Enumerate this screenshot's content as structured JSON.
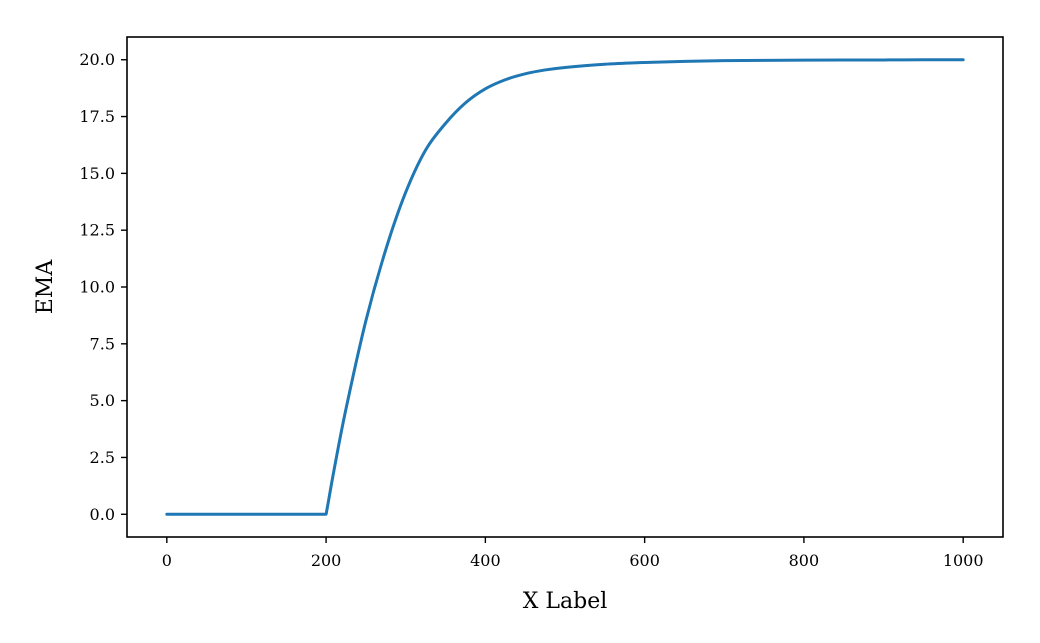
{
  "chart_data": {
    "type": "line",
    "title": "",
    "xlabel": "X Label",
    "ylabel": "EMA",
    "xlim": [
      -50,
      1050
    ],
    "ylim": [
      -1,
      21
    ],
    "xticks": [
      0,
      200,
      400,
      600,
      800,
      1000
    ],
    "xtick_labels": [
      "0",
      "200",
      "400",
      "600",
      "800",
      "1000"
    ],
    "yticks": [
      0,
      2.5,
      5,
      7.5,
      10,
      12.5,
      15,
      17.5,
      20
    ],
    "ytick_labels": [
      "0.0",
      "2.5",
      "5.0",
      "7.5",
      "10.0",
      "12.5",
      "15.0",
      "17.5",
      "20.0"
    ],
    "grid": false,
    "legend": "none",
    "line_color": "#1f77b4",
    "series": [
      {
        "x": [
          0,
          100,
          199,
          200,
          210,
          225,
          250,
          275,
          300,
          325,
          350,
          375,
          400,
          425,
          450,
          475,
          500,
          550,
          600,
          650,
          700,
          750,
          800,
          850,
          900,
          950,
          1000
        ],
        "values": [
          0,
          0,
          0,
          0,
          1.95,
          4.64,
          8.52,
          11.65,
          14.17,
          16.03,
          17.2,
          18.1,
          18.72,
          19.12,
          19.38,
          19.55,
          19.66,
          19.8,
          19.88,
          19.93,
          19.96,
          19.97,
          19.98,
          19.99,
          19.99,
          20.0,
          20.0
        ]
      }
    ]
  }
}
